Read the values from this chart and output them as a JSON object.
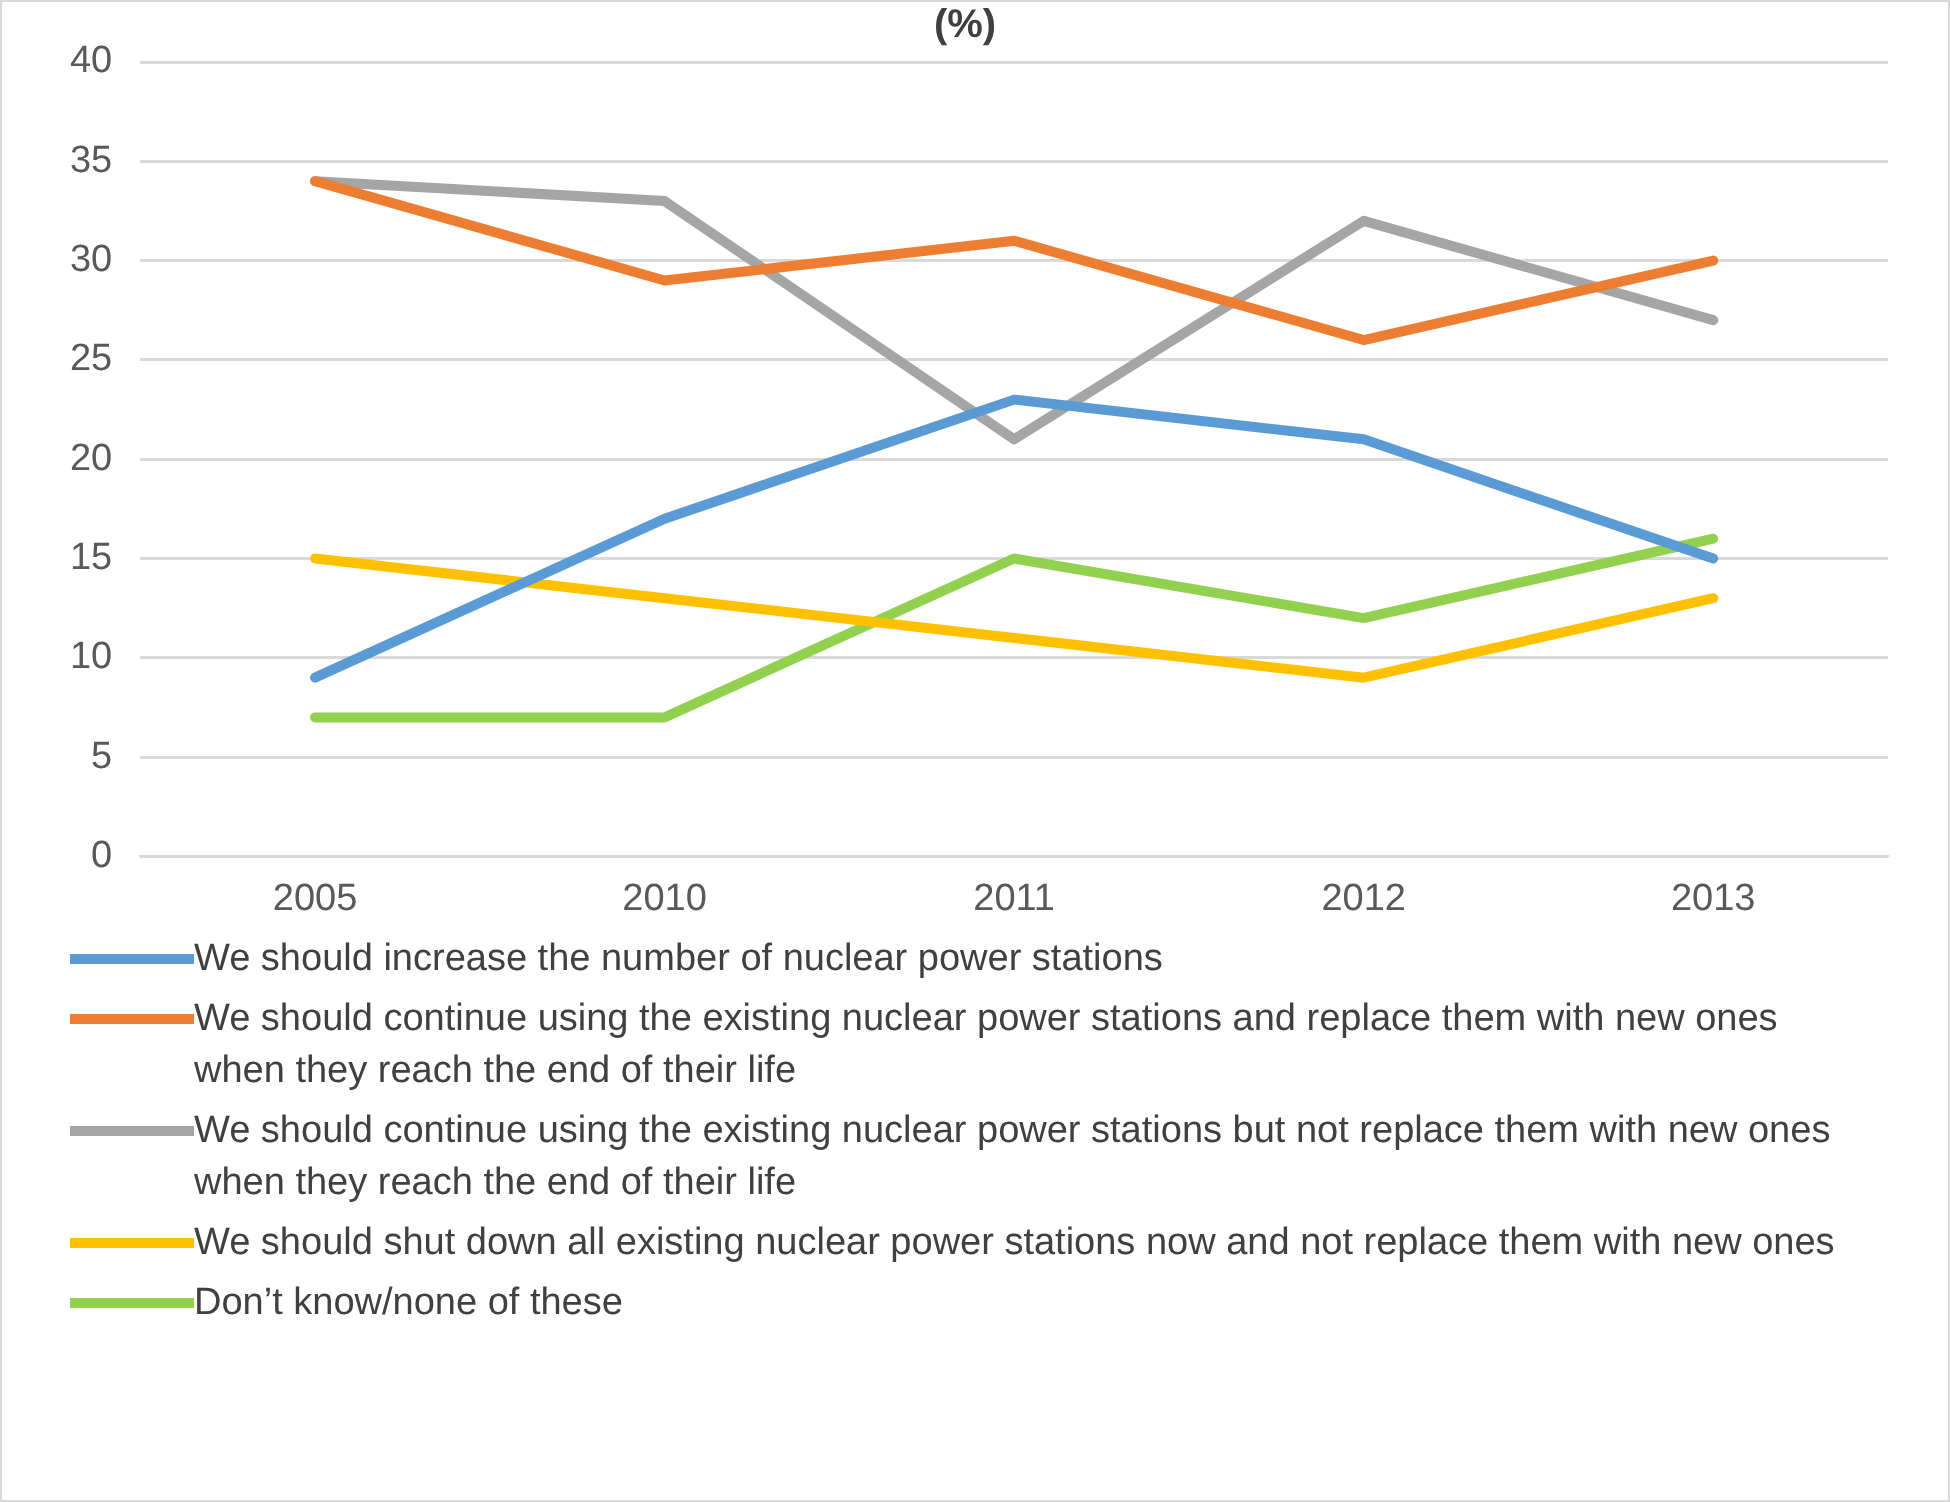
{
  "chart_data": {
    "type": "line",
    "title": "(%)",
    "categories": [
      "2005",
      "2010",
      "2011",
      "2012",
      "2013"
    ],
    "series": [
      {
        "name": "We should increase the number of nuclear power stations",
        "color": "#5b9bd5",
        "values": [
          9,
          17,
          23,
          21,
          15
        ]
      },
      {
        "name": "We should continue using the existing nuclear power stations and replace them with new ones when they reach the end of their life",
        "color": "#ed7d31",
        "values": [
          34,
          29,
          31,
          26,
          30
        ]
      },
      {
        "name": "We should continue using the existing nuclear power stations but not replace them with new ones when they reach the end of their life",
        "color": "#a5a5a5",
        "values": [
          34,
          33,
          21,
          32,
          27
        ]
      },
      {
        "name": "We should shut down all existing nuclear power stations now and not replace them with new ones",
        "color": "#ffc000",
        "values": [
          15,
          13,
          11,
          9,
          13
        ]
      },
      {
        "name": "Don’t know/none of these",
        "color": "#92d050",
        "values": [
          7,
          7,
          15,
          12,
          16
        ]
      }
    ],
    "ylim": [
      0,
      40
    ],
    "yticks": [
      0,
      5,
      10,
      15,
      20,
      25,
      30,
      35,
      40
    ],
    "grid": "y",
    "legend": "bottom",
    "marker": "none",
    "line_style": "solid"
  }
}
